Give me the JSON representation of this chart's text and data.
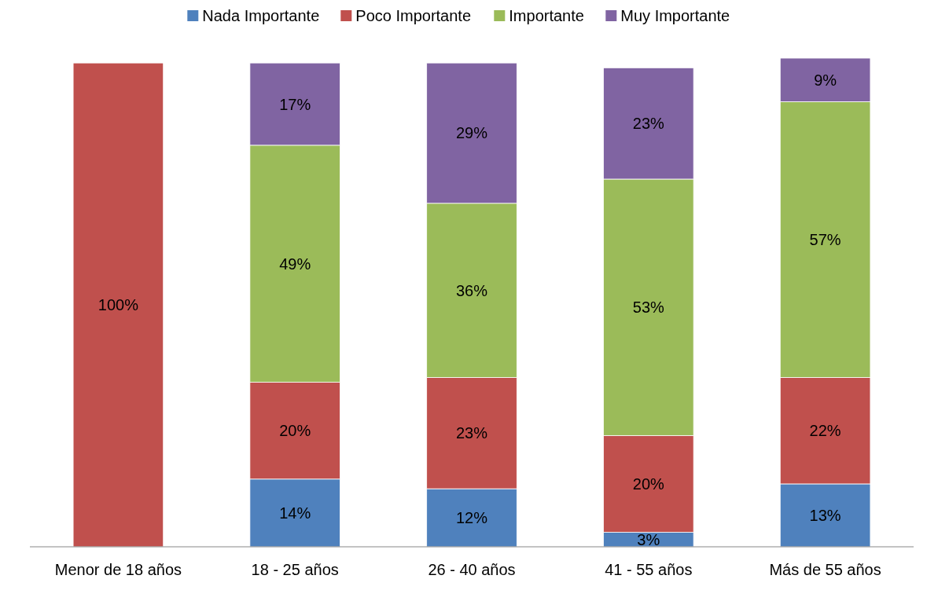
{
  "chart_data": {
    "type": "bar",
    "stacked": true,
    "categories": [
      "Menor de 18 años",
      "18 - 25 años",
      "26 - 40 años",
      "41 - 55 años",
      "Más de 55 años"
    ],
    "series": [
      {
        "name": "Nada Importante",
        "color": "#4f81bd",
        "values": [
          null,
          14,
          12,
          3,
          13
        ],
        "value_labels": [
          null,
          "14%",
          "12%",
          "3%",
          "13%"
        ]
      },
      {
        "name": "Poco Importante",
        "color": "#c0504d",
        "values": [
          100,
          20,
          23,
          20,
          22
        ],
        "value_labels": [
          "100%",
          "20%",
          "23%",
          "20%",
          "22%"
        ]
      },
      {
        "name": "Importante",
        "color": "#9bbb59",
        "values": [
          null,
          49,
          36,
          53,
          57
        ],
        "value_labels": [
          null,
          "49%",
          "36%",
          "53%",
          "57%"
        ]
      },
      {
        "name": "Muy Importante",
        "color": "#8064a2",
        "values": [
          null,
          17,
          29,
          23,
          9
        ],
        "value_labels": [
          null,
          "17%",
          "29%",
          "23%",
          "9%"
        ]
      }
    ],
    "tick_labels": "x",
    "legend": "top"
  }
}
